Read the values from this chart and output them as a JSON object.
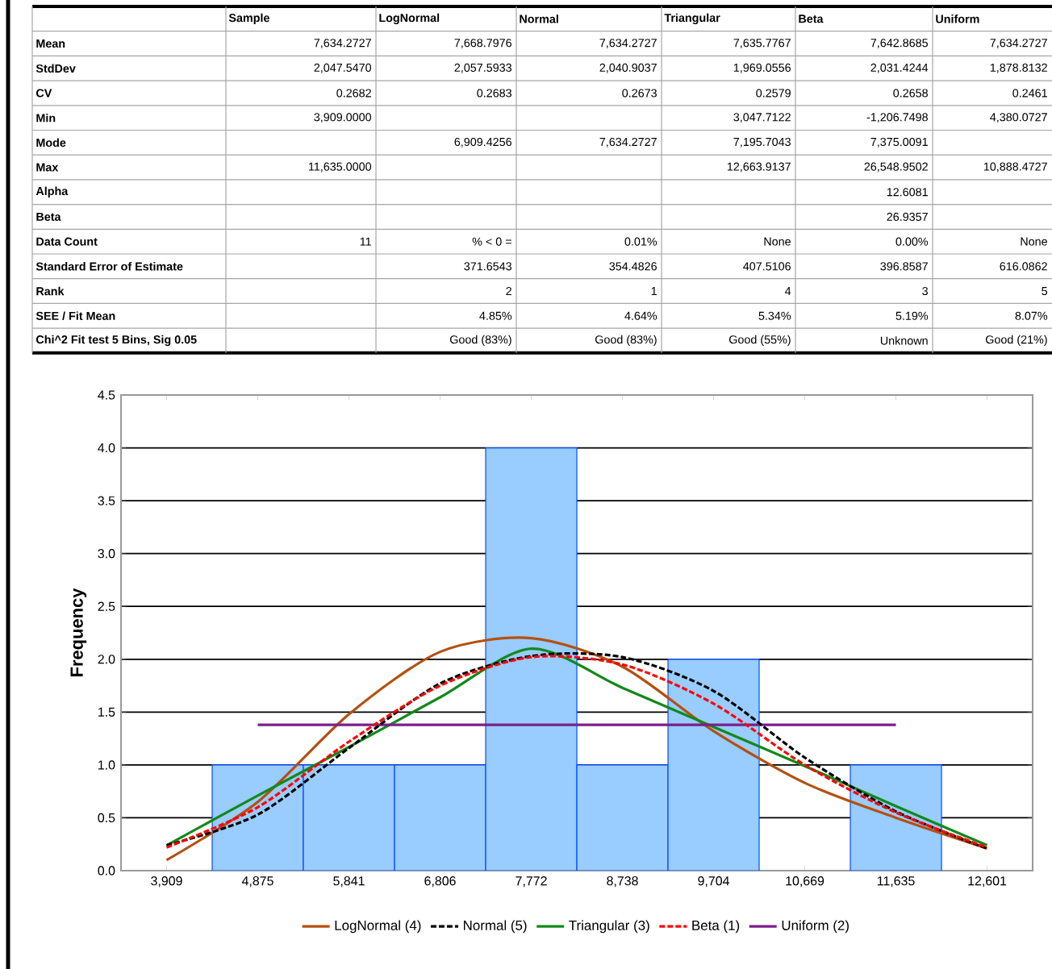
{
  "chart_data": [
    {
      "type": "other",
      "categories": [
        "Sample",
        "LogNormal",
        "Normal",
        "Triangular",
        "Beta",
        "Uniform"
      ],
      "y_categories": [
        "Mean",
        "StdDev",
        "CV",
        "Min",
        "Mode",
        "Max",
        "Alpha",
        "Beta",
        "Data Count",
        "Standard Error of Estimate",
        "Rank",
        "SEE / Fit Mean",
        "Chi^2 Fit test 5 Bins, Sig 0.05"
      ],
      "cell_labels": [
        [
          "7,634.2727",
          "7,668.7976",
          "7,634.2727",
          "7,635.7767",
          "7,642.8685",
          "7,634.2727"
        ],
        [
          "2,047.5470",
          "2,057.5933",
          "2,040.9037",
          "1,969.0556",
          "2,031.4244",
          "1,878.8132"
        ],
        [
          "0.2682",
          "0.2683",
          "0.2673",
          "0.2579",
          "0.2658",
          "0.2461"
        ],
        [
          "3,909.0000",
          null,
          null,
          "3,047.7122",
          "-1,206.7498",
          "4,380.0727"
        ],
        [
          null,
          "6,909.4256",
          "7,634.2727",
          "7,195.7043",
          "7,375.0091",
          null
        ],
        [
          "11,635.0000",
          null,
          null,
          "12,663.9137",
          "26,548.9502",
          "10,888.4727"
        ],
        [
          null,
          null,
          null,
          null,
          "12.6081",
          null
        ],
        [
          null,
          null,
          null,
          null,
          "26.9357",
          null
        ],
        [
          "11",
          "% < 0 =",
          "0.01%",
          "None",
          "0.00%",
          "None"
        ],
        [
          null,
          "371.6543",
          "354.4826",
          "407.5106",
          "396.8587",
          "616.0862"
        ],
        [
          null,
          "2",
          "1",
          "4",
          "3",
          "5"
        ],
        [
          null,
          "4.85%",
          "4.64%",
          "5.34%",
          "5.19%",
          "8.07%"
        ],
        [
          null,
          "Good (83%)",
          "Good (83%)",
          "Good (55%)",
          "Unknown",
          "Good (21%)"
        ]
      ]
    },
    {
      "type": "bar",
      "ylabel": "Frequency",
      "categories": [
        "3,909",
        "4,875",
        "5,841",
        "6,806",
        "7,772",
        "8,738",
        "9,704",
        "10,669",
        "11,635",
        "12,601"
      ],
      "ylim": [
        0,
        4.5
      ],
      "yticks": [
        {
          "value": 0,
          "label": "0.0"
        },
        {
          "value": 0.5,
          "label": "0.5"
        },
        {
          "value": 1,
          "label": "1.0"
        },
        {
          "value": 1.5,
          "label": "1.5"
        },
        {
          "value": 2,
          "label": "2.0"
        },
        {
          "value": 2.5,
          "label": "2.5"
        },
        {
          "value": 3,
          "label": "3.0"
        },
        {
          "value": 3.5,
          "label": "3.5"
        },
        {
          "value": 4,
          "label": "4.0"
        },
        {
          "value": 4.5,
          "label": "4.5"
        }
      ],
      "grid": "y",
      "legend": "bottom",
      "series": [
        {
          "type": "bar",
          "color": "#99ccff",
          "values": [
            0,
            1,
            1,
            1,
            4,
            1,
            2,
            0,
            1,
            0
          ]
        },
        {
          "type": "line",
          "name": "LogNormal (4)",
          "color": "#b5500f",
          "line_style": "solid",
          "values": [
            0.1,
            0.65,
            1.48,
            2.07,
            2.2,
            1.93,
            1.32,
            0.83,
            0.5,
            0.21
          ]
        },
        {
          "type": "line",
          "name": "Normal (5)",
          "color": "#000000",
          "line_style": "dashed",
          "values": [
            0.24,
            0.53,
            1.16,
            1.77,
            2.03,
            2.02,
            1.7,
            1.07,
            0.56,
            0.21
          ]
        },
        {
          "type": "line",
          "name": "Triangular (3)",
          "color": "#12891a",
          "line_style": "solid",
          "values": [
            0.24,
            0.71,
            1.17,
            1.64,
            2.1,
            1.73,
            1.36,
            0.99,
            0.61,
            0.24
          ]
        },
        {
          "type": "line",
          "name": "Beta (1)",
          "color": "#ff0000",
          "line_style": "dashed",
          "values": [
            0.22,
            0.6,
            1.22,
            1.75,
            2.02,
            1.95,
            1.58,
            1.0,
            0.55,
            0.22
          ]
        },
        {
          "type": "line",
          "name": "Uniform (2)",
          "color": "#7a1f8c",
          "line_style": "solid",
          "values": [
            null,
            1.38,
            1.38,
            1.38,
            1.38,
            1.38,
            1.38,
            1.38,
            1.38,
            null
          ]
        }
      ]
    }
  ]
}
